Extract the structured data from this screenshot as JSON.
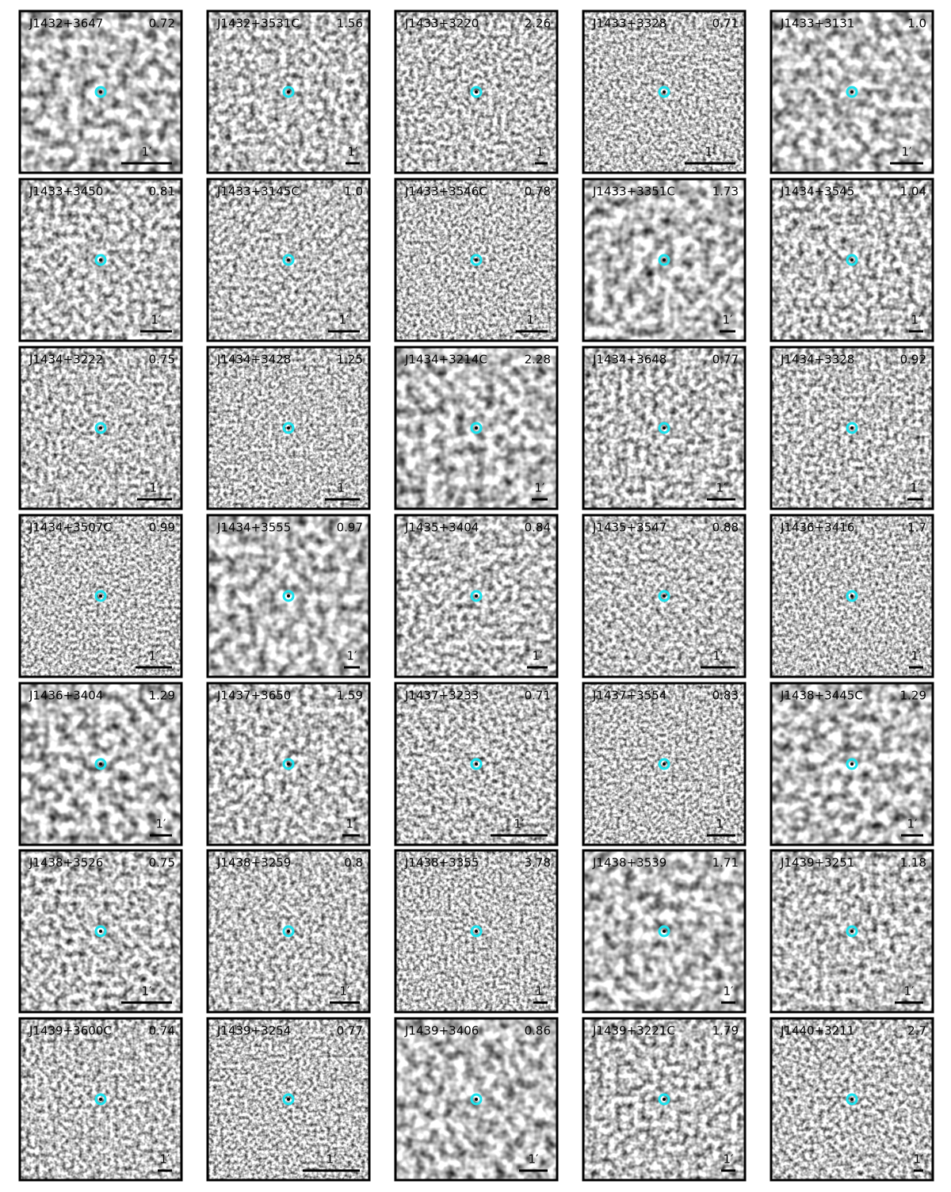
{
  "panels": [
    {
      "name": "J1432+3647",
      "value": "0.72"
    },
    {
      "name": "J1432+3531C",
      "value": "1.56"
    },
    {
      "name": "J1433+3220",
      "value": "2.26"
    },
    {
      "name": "J1433+3328",
      "value": "0.71"
    },
    {
      "name": "J1433+3131",
      "value": "1.0"
    },
    {
      "name": "J1433+3450",
      "value": "0.81"
    },
    {
      "name": "J1433+3145C",
      "value": "1.0"
    },
    {
      "name": "J1433+3546C",
      "value": "0.78"
    },
    {
      "name": "J1433+3351C",
      "value": "1.73"
    },
    {
      "name": "J1434+3545",
      "value": "1.04"
    },
    {
      "name": "J1434+3222",
      "value": "0.75"
    },
    {
      "name": "J1434+3428",
      "value": "1.25"
    },
    {
      "name": "J1434+3214C",
      "value": "2.28"
    },
    {
      "name": "J1434+3648",
      "value": "0.77"
    },
    {
      "name": "J1434+3328",
      "value": "0.92"
    },
    {
      "name": "J1434+3507C",
      "value": "0.99"
    },
    {
      "name": "J1434+3555",
      "value": "0.97"
    },
    {
      "name": "J1435+3404",
      "value": "0.84"
    },
    {
      "name": "J1435+3547",
      "value": "0.88"
    },
    {
      "name": "J1436+3416",
      "value": "1.7"
    },
    {
      "name": "J1436+3404",
      "value": "1.29"
    },
    {
      "name": "J1437+3650",
      "value": "1.59"
    },
    {
      "name": "J1437+3233",
      "value": "0.71"
    },
    {
      "name": "J1437+3554",
      "value": "0.83"
    },
    {
      "name": "J1438+3445C",
      "value": "1.29"
    },
    {
      "name": "J1438+3526",
      "value": "0.75"
    },
    {
      "name": "J1438+3259",
      "value": "0.8"
    },
    {
      "name": "J1438+3355",
      "value": "3.78"
    },
    {
      "name": "J1438+3539",
      "value": "1.71"
    },
    {
      "name": "J1439+3251",
      "value": "1.18"
    },
    {
      "name": "J1439+3600C",
      "value": "0.74"
    },
    {
      "name": "J1439+3254",
      "value": "0.77"
    },
    {
      "name": "J1439+3406",
      "value": "0.86"
    },
    {
      "name": "J1439+3221C",
      "value": "1.79"
    },
    {
      "name": "J1440+3211",
      "value": "2.7"
    }
  ],
  "scale_label": "1′"
}
